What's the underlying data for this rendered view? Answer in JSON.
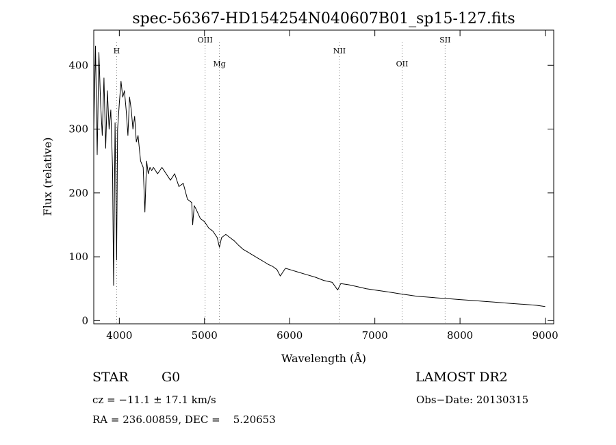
{
  "chart_data": {
    "type": "line",
    "title": "spec-56367-HD154254N040607B01_sp15-127.fits",
    "xlabel": "Wavelength (Å)",
    "ylabel": "Flux (relative)",
    "xlim": [
      3700,
      9100
    ],
    "ylim": [
      -5,
      455
    ],
    "xticks": [
      4000,
      5000,
      6000,
      7000,
      8000,
      9000
    ],
    "yticks": [
      0,
      100,
      200,
      300,
      400
    ],
    "grid": false,
    "line_color": "#000000",
    "marker_color": "#808080",
    "spectral_lines": [
      {
        "name": "H",
        "wavelength": 3969
      },
      {
        "name": "OIII",
        "wavelength": 5007
      },
      {
        "name": "Mg",
        "wavelength": 5175
      },
      {
        "name": "NII",
        "wavelength": 6584
      },
      {
        "name": "OII",
        "wavelength": 7320
      },
      {
        "name": "SII",
        "wavelength": 7825
      }
    ],
    "series": [
      {
        "x": [
          3700,
          3720,
          3740,
          3760,
          3780,
          3800,
          3820,
          3840,
          3860,
          3880,
          3900,
          3920,
          3933,
          3950,
          3968,
          3980,
          4000,
          4020,
          4040,
          4060,
          4080,
          4101,
          4120,
          4140,
          4160,
          4180,
          4200,
          4220,
          4250,
          4280,
          4300,
          4320,
          4340,
          4360,
          4380,
          4400,
          4450,
          4500,
          4550,
          4600,
          4650,
          4700,
          4750,
          4800,
          4850,
          4861,
          4880,
          4900,
          4950,
          5000,
          5050,
          5100,
          5150,
          5175,
          5200,
          5250,
          5300,
          5350,
          5400,
          5450,
          5500,
          5550,
          5600,
          5650,
          5700,
          5750,
          5800,
          5850,
          5890,
          5950,
          6000,
          6100,
          6200,
          6300,
          6400,
          6500,
          6563,
          6600,
          6700,
          6800,
          6900,
          7000,
          7100,
          7200,
          7300,
          7400,
          7500,
          7600,
          7700,
          7800,
          7900,
          8000,
          8100,
          8200,
          8300,
          8400,
          8500,
          8600,
          8700,
          8800,
          8900,
          9000
        ],
        "y": [
          300,
          430,
          260,
          420,
          340,
          290,
          380,
          270,
          360,
          300,
          330,
          240,
          55,
          310,
          95,
          300,
          340,
          375,
          350,
          360,
          330,
          290,
          350,
          330,
          300,
          320,
          280,
          290,
          250,
          240,
          170,
          250,
          230,
          240,
          235,
          240,
          230,
          240,
          230,
          220,
          230,
          210,
          215,
          190,
          185,
          150,
          180,
          175,
          160,
          155,
          145,
          140,
          130,
          115,
          130,
          135,
          130,
          125,
          118,
          112,
          108,
          104,
          100,
          96,
          92,
          88,
          85,
          80,
          70,
          82,
          80,
          76,
          72,
          68,
          63,
          60,
          48,
          58,
          56,
          53,
          50,
          48,
          46,
          44,
          42,
          40,
          38,
          37,
          36,
          35,
          34,
          33,
          32,
          31,
          30,
          29,
          28,
          27,
          26,
          25,
          24,
          22
        ]
      }
    ]
  },
  "info": {
    "object_type": "STAR",
    "subclass": "G0",
    "survey": "LAMOST DR2",
    "cz": "cz = −11.1 ± 17.1 km/s",
    "obs_date": "Obs−Date: 20130315",
    "coords": "RA = 236.00859, DEC =    5.20653"
  }
}
